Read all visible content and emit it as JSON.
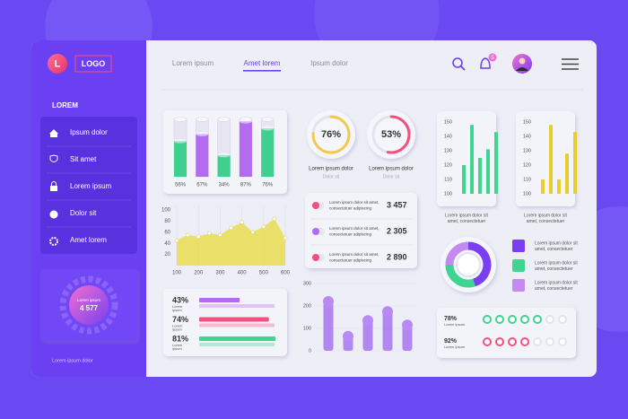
{
  "sidebar": {
    "logo_letter": "L",
    "logo": "LOGO",
    "heading": "LOREM",
    "menu": [
      "Ipsum dolor",
      "Sit amet",
      "Lorem ipsum",
      "Dolor sit",
      "Amet lorem"
    ],
    "gear_widget": {
      "label": "Lorem ipsum",
      "value": "4 577"
    },
    "footer": "Lorem ipsum dolor"
  },
  "nav": {
    "links": [
      "Lorem ipsum",
      "Amet lorem",
      "Ipsum dolor"
    ],
    "active": 1,
    "notifications": "5"
  },
  "bars3d": {
    "values": [
      56,
      67,
      34,
      87,
      76
    ],
    "value_labels": [
      "56%",
      "67%",
      "34%",
      "87%",
      "76%"
    ],
    "colors": [
      "#3fcf8e",
      "#b36bf0",
      "#3fcf8e",
      "#b36bf0",
      "#3fcf8e"
    ],
    "ylim": [
      0,
      100
    ]
  },
  "area_chart": {
    "x": [
      100,
      150,
      200,
      250,
      300,
      350,
      400,
      450,
      500,
      550,
      600
    ],
    "values": [
      45,
      55,
      52,
      58,
      55,
      68,
      78,
      60,
      70,
      84,
      50
    ],
    "xlim": [
      100,
      600
    ],
    "ylim": [
      0,
      100
    ],
    "xticks": [
      100,
      200,
      300,
      400,
      500,
      600
    ],
    "yticks": [
      100,
      80,
      60,
      40,
      20
    ],
    "color": "#e9dc4f"
  },
  "gauges": [
    {
      "value": 76,
      "label": "76%",
      "title": "Lorem ipsum dolor",
      "subtitle": "Dolor sit",
      "color": "#f2c94c"
    },
    {
      "value": 53,
      "label": "53%",
      "title": "Lorem ipsum dolor",
      "subtitle": "Dolor sit",
      "color": "#f4507f"
    }
  ],
  "stats_list": [
    {
      "text": [
        "Lorem ipsum dolor sit amet,",
        "consectetuer adipiscing"
      ],
      "value": "3 457",
      "color": "#f4507f"
    },
    {
      "text": [
        "Lorem ipsum dolor sit amet,",
        "consectetuer adipiscing"
      ],
      "value": "2 305",
      "color": "#b36bf0"
    },
    {
      "text": [
        "Lorem ipsum dolor sit amet,",
        "consectetuer adipiscing"
      ],
      "value": "2 890",
      "color": "#f4507f"
    }
  ],
  "column_chart": {
    "values": [
      220,
      65,
      135,
      175,
      115
    ],
    "ylim": [
      0,
      300
    ],
    "yticks": [
      300,
      200,
      100,
      0
    ],
    "color": "#a874f0"
  },
  "progress_bars": [
    {
      "label": "43%",
      "value": 43,
      "caption": [
        "Lorem",
        "ipsum"
      ],
      "color": "#b36bf0"
    },
    {
      "label": "74%",
      "value": 74,
      "caption": [
        "Lorem",
        "ipsum"
      ],
      "color": "#f4507f"
    },
    {
      "label": "81%",
      "value": 81,
      "caption": [
        "Lorem",
        "ipsum"
      ],
      "color": "#3fd48f"
    }
  ],
  "green_chart": {
    "values": [
      120,
      148,
      125,
      131,
      143
    ],
    "ylim": [
      100,
      150
    ],
    "yticks": [
      150,
      140,
      130,
      120,
      110,
      100
    ],
    "color": "#3fd48f",
    "caption": [
      "Lorem ipsum dolor sit",
      "amet, consectetuer"
    ]
  },
  "yellow_chart": {
    "values": [
      110,
      148,
      110,
      128,
      143
    ],
    "ylim": [
      100,
      150
    ],
    "yticks": [
      150,
      140,
      130,
      120,
      110,
      100
    ],
    "color": "#e6cf2a",
    "caption": [
      "Lorem ipsum dolor sit",
      "amet, consectetuer"
    ]
  },
  "donut": {
    "values": [
      45,
      30,
      25
    ],
    "colors": [
      "#7a3ff0",
      "#3fd48f",
      "#c58af2"
    ],
    "legend": [
      [
        "Lorem ipsum dolor sit",
        "amet, consectetuer"
      ],
      [
        "Lorem ipsum dolor sit",
        "amet, consectetuer"
      ],
      [
        "Lorem ipsum dolor sit",
        "amet, consectetuer"
      ]
    ]
  },
  "dot_rows": [
    {
      "label": "78%",
      "caption": "Lorem ipsum",
      "color": "#3fd48f"
    },
    {
      "label": "92%",
      "caption": "Lorem ipsum",
      "color": "#f4507f"
    }
  ]
}
